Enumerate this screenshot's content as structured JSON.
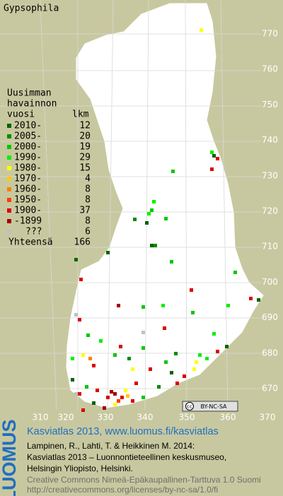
{
  "title": "Gypsophila",
  "legend": {
    "heading": [
      "Uusimman",
      "havainnon",
      "vuosi"
    ],
    "count_heading": "lkm",
    "items": [
      {
        "label": "2010-",
        "count": 12,
        "color": "#006400"
      },
      {
        "label": "2005-",
        "count": 20,
        "color": "#008c00"
      },
      {
        "label": "2000-",
        "count": 19,
        "color": "#00c800"
      },
      {
        "label": "1990-",
        "count": 29,
        "color": "#00f000"
      },
      {
        "label": "1980-",
        "count": 15,
        "color": "#ffff00"
      },
      {
        "label": "1970-",
        "count": 4,
        "color": "#ffc800"
      },
      {
        "label": "1960-",
        "count": 8,
        "color": "#ff8000"
      },
      {
        "label": "1950-",
        "count": 8,
        "color": "#ff3c00"
      },
      {
        "label": "1900-",
        "count": 37,
        "color": "#dc0000"
      },
      {
        "label": "-1899",
        "count": 8,
        "color": "#a00000"
      },
      {
        "label": "???",
        "count": 6,
        "color": "#c0c0c0"
      }
    ],
    "total_label": "Yhteensä",
    "total": 166
  },
  "axis": {
    "x_labels": [
      310,
      320,
      330,
      340,
      350,
      360,
      370
    ],
    "y_labels": [
      770,
      760,
      750,
      740,
      730,
      720,
      710,
      700,
      690,
      680,
      670
    ]
  },
  "badge": {
    "cc": "cc",
    "license": "BY-NC-SA"
  },
  "footer": {
    "logo": "LUOMUS",
    "headline": "Kasviatlas 2013, www.luomus.fi/kasviatlas",
    "citation": [
      "Lampinen, R., Lahti, T. & Heikkinen M. 2014:",
      "Kasviatlas 2013 – Luonnontieteellinen keskusmuseo,",
      "Helsingin Yliopisto, Helsinki."
    ],
    "license": [
      "Creative Commons Nimeä-Epäkaupallinen-Tarttuva 1.0 Suomi",
      "http://creativecommons.org/licenses/by-nc-sa/1.0/fi"
    ]
  }
}
